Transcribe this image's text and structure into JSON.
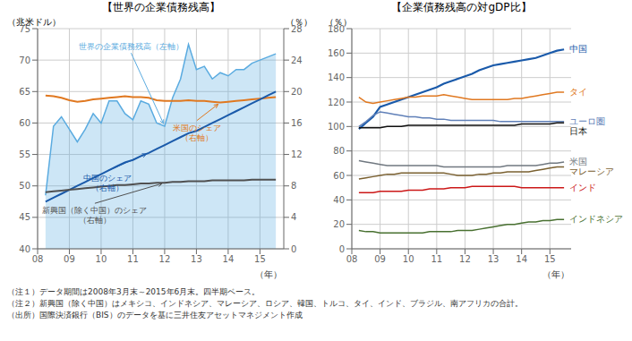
{
  "chart_data": [
    {
      "type": "line",
      "title": "【世界の企業債務残高】",
      "x_label": "（年）",
      "y_label": "（兆米ドル）",
      "y2_label": "（％）",
      "x": [
        2008.25,
        2008.5,
        2008.75,
        2009.0,
        2009.25,
        2009.5,
        2009.75,
        2010.0,
        2010.25,
        2010.5,
        2010.75,
        2011.0,
        2011.25,
        2011.5,
        2011.75,
        2012.0,
        2012.25,
        2012.5,
        2012.75,
        2013.0,
        2013.25,
        2013.5,
        2013.75,
        2014.0,
        2014.25,
        2014.5,
        2014.75,
        2015.0,
        2015.25,
        2015.5
      ],
      "xlim": [
        2008,
        2015.75
      ],
      "xticks": [
        {
          "value": 2008,
          "label": "08"
        },
        {
          "value": 2009,
          "label": "09"
        },
        {
          "value": 2010,
          "label": "10"
        },
        {
          "value": 2011,
          "label": "11"
        },
        {
          "value": 2012,
          "label": "12"
        },
        {
          "value": 2013,
          "label": "13"
        },
        {
          "value": 2014,
          "label": "14"
        },
        {
          "value": 2015,
          "label": "15"
        }
      ],
      "ylim": [
        40,
        75
      ],
      "yticks": [
        40,
        45,
        50,
        55,
        60,
        65,
        70,
        75
      ],
      "y2lim": [
        0,
        28
      ],
      "y2ticks": [
        0,
        4,
        8,
        12,
        16,
        20,
        24,
        28
      ],
      "grid": true,
      "series": [
        {
          "name": "世界の企業債務残高（左軸）",
          "type": "area",
          "color": "#5aabe0",
          "values": [
            48.5,
            59.5,
            61.0,
            59.0,
            57.0,
            59.0,
            61.5,
            60.0,
            63.5,
            63.5,
            61.5,
            60.5,
            63.5,
            63.0,
            60.0,
            59.5,
            64.0,
            67.0,
            72.5,
            68.5,
            69.0,
            67.0,
            68.0,
            67.5,
            68.5,
            68.5,
            69.5,
            70.0,
            70.5,
            71.0
          ]
        },
        {
          "name": "米国のシェア\n（右軸）",
          "type": "line",
          "axis": "y2",
          "color": "#e07820",
          "values": [
            19.5,
            19.4,
            19.2,
            18.9,
            18.7,
            18.8,
            19.0,
            19.1,
            19.2,
            19.3,
            19.4,
            19.3,
            19.3,
            19.2,
            18.9,
            18.8,
            18.8,
            18.8,
            18.9,
            18.8,
            18.8,
            18.7,
            18.6,
            18.7,
            18.8,
            18.9,
            19.0,
            19.1,
            19.2,
            19.3
          ]
        },
        {
          "name": "中国のシェア\n（右軸）",
          "type": "line",
          "axis": "y2",
          "color": "#1a5aaa",
          "values": [
            6.0,
            6.5,
            7.0,
            7.5,
            8.0,
            8.5,
            9.0,
            9.5,
            10.0,
            10.5,
            11.0,
            11.3,
            11.8,
            12.2,
            12.7,
            13.2,
            13.7,
            14.2,
            14.7,
            15.0,
            15.5,
            16.0,
            16.5,
            17.0,
            17.5,
            18.0,
            18.5,
            19.0,
            19.5,
            20.0
          ]
        },
        {
          "name": "新興国（除く中国）のシェア\n（右軸）",
          "type": "line",
          "axis": "y2",
          "color": "#505050",
          "values": [
            7.2,
            7.3,
            7.4,
            7.5,
            7.6,
            7.7,
            7.8,
            7.9,
            8.0,
            8.1,
            8.1,
            8.2,
            8.3,
            8.3,
            8.4,
            8.4,
            8.5,
            8.5,
            8.6,
            8.6,
            8.6,
            8.7,
            8.7,
            8.7,
            8.7,
            8.7,
            8.8,
            8.8,
            8.8,
            8.8
          ]
        }
      ]
    },
    {
      "type": "line",
      "title": "【企業債務残高の対gDP比】",
      "x_label": "（年）",
      "y_label": "（％）",
      "x": [
        2008.25,
        2008.5,
        2008.75,
        2009.0,
        2009.25,
        2009.5,
        2009.75,
        2010.0,
        2010.25,
        2010.5,
        2010.75,
        2011.0,
        2011.25,
        2011.5,
        2011.75,
        2012.0,
        2012.25,
        2012.5,
        2012.75,
        2013.0,
        2013.25,
        2013.5,
        2013.75,
        2014.0,
        2014.25,
        2014.5,
        2014.75,
        2015.0,
        2015.25,
        2015.5
      ],
      "xlim": [
        2008,
        2015.75
      ],
      "xticks": [
        {
          "value": 2008,
          "label": "08"
        },
        {
          "value": 2009,
          "label": "09"
        },
        {
          "value": 2010,
          "label": "10"
        },
        {
          "value": 2011,
          "label": "11"
        },
        {
          "value": 2012,
          "label": "12"
        },
        {
          "value": 2013,
          "label": "13"
        },
        {
          "value": 2014,
          "label": "14"
        },
        {
          "value": 2015,
          "label": "15"
        }
      ],
      "ylim": [
        0,
        180
      ],
      "yticks": [
        0,
        20,
        40,
        60,
        80,
        100,
        120,
        140,
        160,
        180
      ],
      "grid": true,
      "series": [
        {
          "name": "中国",
          "color": "#1a5aaa",
          "values": [
            98,
            103,
            108,
            116,
            118,
            120,
            122,
            124,
            126,
            128,
            130,
            132,
            135,
            137,
            139,
            141,
            143,
            146,
            148,
            150,
            151,
            152,
            153,
            154,
            155,
            156,
            158,
            160,
            162,
            163
          ]
        },
        {
          "name": "タイ",
          "color": "#e07820",
          "values": [
            124,
            120,
            119,
            120,
            121,
            122,
            123,
            124,
            124,
            125,
            125,
            125,
            126,
            125,
            124,
            123,
            122,
            122,
            122,
            122,
            122,
            122,
            123,
            123,
            124,
            125,
            126,
            127,
            128,
            128
          ]
        },
        {
          "name": "ユーロ圏",
          "color": "#6080b8",
          "values": [
            100,
            104,
            109,
            112,
            111,
            110,
            109,
            108,
            108,
            107,
            107,
            106,
            106,
            105,
            105,
            105,
            105,
            105,
            105,
            105,
            104,
            104,
            104,
            104,
            104,
            104,
            104,
            104,
            104,
            104
          ]
        },
        {
          "name": "日本",
          "color": "#101010",
          "values": [
            99,
            99,
            99,
            99,
            100,
            100,
            100,
            101,
            101,
            101,
            101,
            101,
            101,
            101,
            101,
            101,
            101,
            101,
            101,
            101,
            101,
            101,
            101,
            102,
            102,
            102,
            102,
            102,
            103,
            103
          ]
        },
        {
          "name": "米国",
          "color": "#707880",
          "values": [
            72,
            71,
            70,
            69,
            68,
            68,
            68,
            68,
            68,
            68,
            68,
            68,
            67,
            67,
            67,
            67,
            67,
            67,
            67,
            67,
            67,
            68,
            68,
            68,
            68,
            68,
            69,
            70,
            70,
            71
          ]
        },
        {
          "name": "マレーシア",
          "color": "#7a6030",
          "values": [
            57,
            58,
            59,
            60,
            61,
            61,
            62,
            62,
            62,
            62,
            62,
            62,
            62,
            61,
            60,
            60,
            60,
            61,
            61,
            62,
            62,
            63,
            63,
            63,
            63,
            64,
            65,
            66,
            67,
            67
          ]
        },
        {
          "name": "インド",
          "color": "#cc1818",
          "values": [
            46,
            46,
            46,
            47,
            47,
            47,
            47,
            48,
            48,
            48,
            49,
            49,
            49,
            50,
            50,
            50,
            51,
            51,
            51,
            51,
            51,
            51,
            51,
            50,
            50,
            50,
            50,
            50,
            50,
            50
          ]
        },
        {
          "name": "インドネシア",
          "color": "#487030",
          "values": [
            15,
            14,
            14,
            13,
            13,
            13,
            13,
            13,
            13,
            13,
            14,
            14,
            14,
            14,
            15,
            15,
            15,
            16,
            17,
            18,
            19,
            20,
            20,
            21,
            22,
            22,
            23,
            23,
            24,
            24
          ]
        }
      ]
    }
  ],
  "notes": [
    "（注１）データ期間は2008年3月末～2015年6月末。四半期ベース。",
    "（注２）新興国（除く中国）はメキシコ、インドネシア、マレーシア、ロシア、韓国、トルコ、タイ、インド、ブラジル、南アフリカの合計。",
    "（出所）国際決済銀行（BIS）のデータを基に三井住友アセットマネジメント作成"
  ]
}
